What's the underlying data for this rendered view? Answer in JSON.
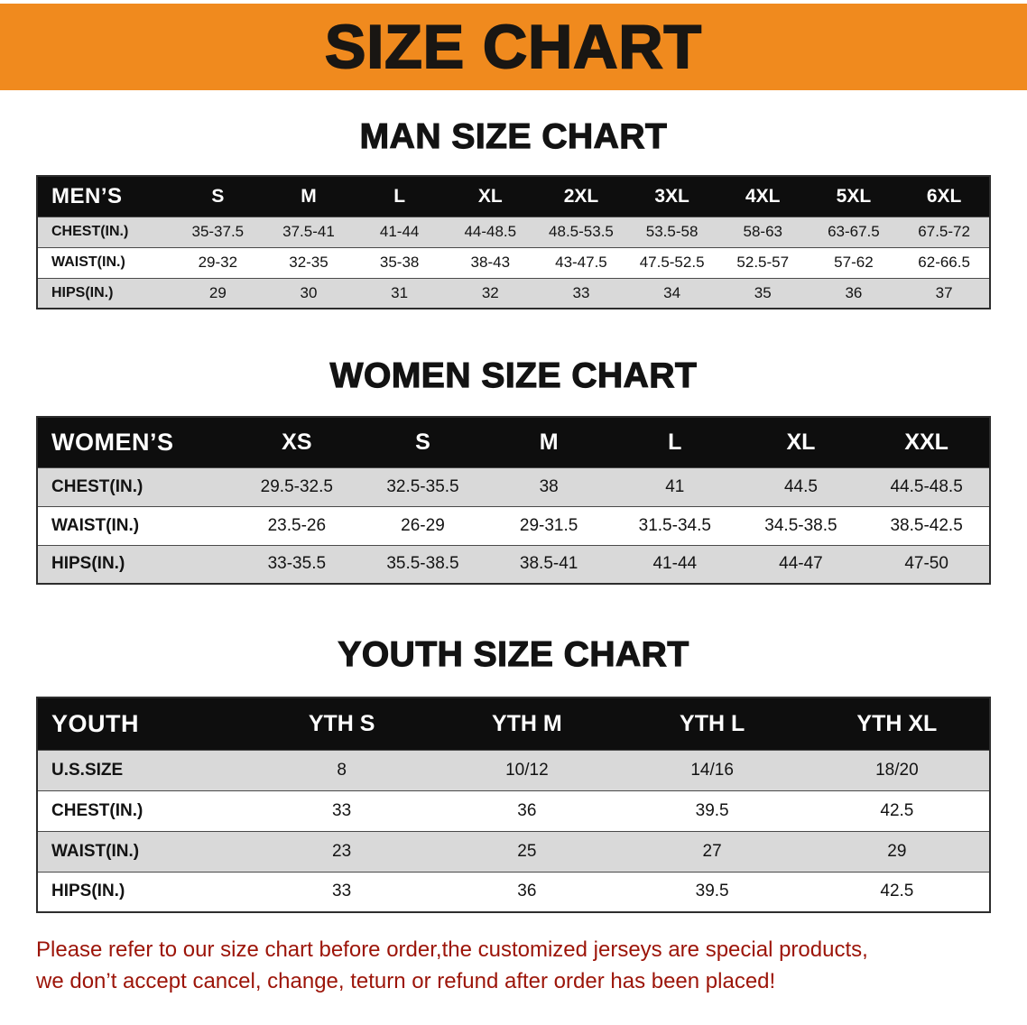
{
  "banner": {
    "title": "SIZE CHART"
  },
  "colors": {
    "banner_orange": "#f08a1e",
    "table_header_bg": "#0e0e0e",
    "row_shade": "#d9d9d9",
    "notice_red": "#9c1408"
  },
  "sections": [
    {
      "id": "men",
      "heading": "MAN SIZE CHART",
      "table": {
        "title": "MEN’S",
        "columns": [
          "S",
          "M",
          "L",
          "XL",
          "2XL",
          "3XL",
          "4XL",
          "5XL",
          "6XL"
        ],
        "rows": [
          {
            "label": "CHEST(IN.)",
            "values": [
              "35-37.5",
              "37.5-41",
              "41-44",
              "44-48.5",
              "48.5-53.5",
              "53.5-58",
              "58-63",
              "63-67.5",
              "67.5-72"
            ]
          },
          {
            "label": "WAIST(IN.)",
            "values": [
              "29-32",
              "32-35",
              "35-38",
              "38-43",
              "43-47.5",
              "47.5-52.5",
              "52.5-57",
              "57-62",
              "62-66.5"
            ]
          },
          {
            "label": "HIPS(IN.)",
            "values": [
              "29",
              "30",
              "31",
              "32",
              "33",
              "34",
              "35",
              "36",
              "37"
            ]
          }
        ]
      }
    },
    {
      "id": "women",
      "heading": "WOMEN SIZE CHART",
      "table": {
        "title": "WOMEN’S",
        "columns": [
          "XS",
          "S",
          "M",
          "L",
          "XL",
          "XXL"
        ],
        "rows": [
          {
            "label": "CHEST(IN.)",
            "values": [
              "29.5-32.5",
              "32.5-35.5",
              "38",
              "41",
              "44.5",
              "44.5-48.5"
            ]
          },
          {
            "label": "WAIST(IN.)",
            "values": [
              "23.5-26",
              "26-29",
              "29-31.5",
              "31.5-34.5",
              "34.5-38.5",
              "38.5-42.5"
            ]
          },
          {
            "label": "HIPS(IN.)",
            "values": [
              "33-35.5",
              "35.5-38.5",
              "38.5-41",
              "41-44",
              "44-47",
              "47-50"
            ]
          }
        ]
      }
    },
    {
      "id": "youth",
      "heading": "YOUTH SIZE CHART",
      "table": {
        "title": "YOUTH",
        "columns": [
          "YTH S",
          "YTH M",
          "YTH L",
          "YTH XL"
        ],
        "rows": [
          {
            "label": "U.S.SIZE",
            "values": [
              "8",
              "10/12",
              "14/16",
              "18/20"
            ]
          },
          {
            "label": "CHEST(IN.)",
            "values": [
              "33",
              "36",
              "39.5",
              "42.5"
            ]
          },
          {
            "label": "WAIST(IN.)",
            "values": [
              "23",
              "25",
              "27",
              "29"
            ]
          },
          {
            "label": "HIPS(IN.)",
            "values": [
              "33",
              "36",
              "39.5",
              "42.5"
            ]
          }
        ]
      }
    }
  ],
  "notice": {
    "lines": [
      "Please refer to our size chart before order,the customized jerseys are special products,",
      "we don’t accept cancel, change, teturn or refund after order has been placed!"
    ]
  }
}
